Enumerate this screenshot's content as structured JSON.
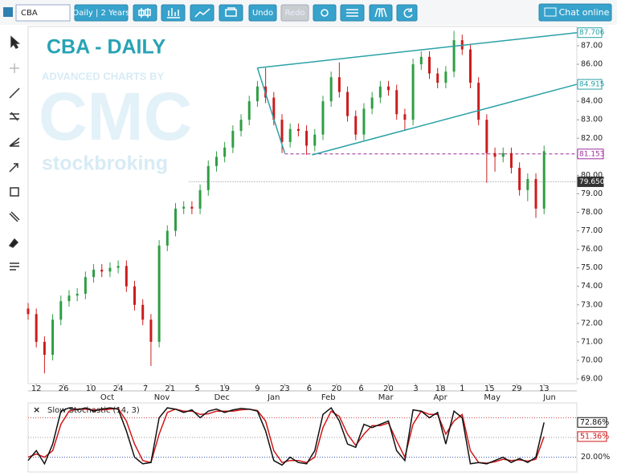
{
  "toolbar": {
    "symbol": "CBA",
    "period": "Daily | 2 Years",
    "undo": "Undo",
    "redo": "Redo",
    "chat": "Chat online"
  },
  "watermark": {
    "title": "CBA - DAILY",
    "byline": "ADVANCED CHARTS BY",
    "brand": "CMC",
    "tagline": "stockbroking"
  },
  "chart_data": [
    {
      "type": "candlestick",
      "x": [
        0,
        3,
        6,
        9,
        12,
        15,
        18,
        21,
        24,
        27,
        30,
        33,
        36,
        39,
        42,
        45,
        48,
        51,
        54,
        57,
        60,
        63,
        66,
        69,
        72,
        75,
        78,
        81,
        84,
        87,
        90,
        93,
        96,
        99,
        102,
        105,
        108,
        111,
        114,
        117,
        120,
        123,
        126,
        129,
        132,
        135,
        138,
        141,
        144,
        147,
        150,
        153,
        156,
        159,
        162,
        165,
        168,
        171,
        174,
        177,
        180,
        183,
        186,
        189
      ],
      "open": [
        72.8,
        72.5,
        71.0,
        70.3,
        72.2,
        73.2,
        73.5,
        73.6,
        74.5,
        74.9,
        74.8,
        75.0,
        75.1,
        74.0,
        73.0,
        72.2,
        71.0,
        76.2,
        77.0,
        78.2,
        78.3,
        78.2,
        79.2,
        80.5,
        81.0,
        81.5,
        82.4,
        83.0,
        84.0,
        84.8,
        84.2,
        83.0,
        81.8,
        82.5,
        82.4,
        81.6,
        82.2,
        84.0,
        85.3,
        84.5,
        83.2,
        82.2,
        83.6,
        84.2,
        84.8,
        84.6,
        83.3,
        83.0,
        86.0,
        86.4,
        85.5,
        85.0,
        85.6,
        87.3,
        86.8,
        85.0,
        83.0,
        81.2,
        81.0,
        81.2,
        80.4,
        79.2,
        79.8,
        78.2
      ],
      "high": [
        73.1,
        72.8,
        71.3,
        72.5,
        73.5,
        73.8,
        73.9,
        74.8,
        75.2,
        75.2,
        75.3,
        75.4,
        75.4,
        74.3,
        73.3,
        72.5,
        76.5,
        77.3,
        78.5,
        78.6,
        78.6,
        79.5,
        80.8,
        81.3,
        81.8,
        82.7,
        83.3,
        84.3,
        85.1,
        85.8,
        84.5,
        83.3,
        82.8,
        82.8,
        82.7,
        82.5,
        84.3,
        85.6,
        86.1,
        84.8,
        83.5,
        83.9,
        84.5,
        85.1,
        85.1,
        84.9,
        83.6,
        86.3,
        86.7,
        86.7,
        85.8,
        85.9,
        87.8,
        87.6,
        87.1,
        85.3,
        83.3,
        81.5,
        81.5,
        81.5,
        80.7,
        80.1,
        80.1,
        81.6
      ],
      "low": [
        72.2,
        70.7,
        69.3,
        70.0,
        71.9,
        72.9,
        73.2,
        73.3,
        74.2,
        74.5,
        74.5,
        74.7,
        73.7,
        72.7,
        71.9,
        69.7,
        70.7,
        75.9,
        76.7,
        77.9,
        77.9,
        77.9,
        78.9,
        80.2,
        80.7,
        81.2,
        82.1,
        82.7,
        83.7,
        83.9,
        82.7,
        81.2,
        81.5,
        82.1,
        81.1,
        81.3,
        81.9,
        83.7,
        84.2,
        82.9,
        81.9,
        81.9,
        83.3,
        83.9,
        84.3,
        83.0,
        82.4,
        82.7,
        85.7,
        85.2,
        84.7,
        84.7,
        85.3,
        86.5,
        84.7,
        82.7,
        79.6,
        80.2,
        80.7,
        80.1,
        78.9,
        78.6,
        77.7,
        77.9
      ],
      "close": [
        72.5,
        71.0,
        70.3,
        72.2,
        73.2,
        73.5,
        73.6,
        74.5,
        74.9,
        74.8,
        75.0,
        75.1,
        74.0,
        73.0,
        72.2,
        71.0,
        76.2,
        77.0,
        78.2,
        78.3,
        78.2,
        79.2,
        80.5,
        81.0,
        81.5,
        82.4,
        83.0,
        84.0,
        84.8,
        84.2,
        83.0,
        81.8,
        82.5,
        82.4,
        81.6,
        82.2,
        84.0,
        85.3,
        84.5,
        83.2,
        82.2,
        83.6,
        84.2,
        84.8,
        84.6,
        83.3,
        83.0,
        86.0,
        86.4,
        85.5,
        85.0,
        85.6,
        87.3,
        86.8,
        85.0,
        83.0,
        81.2,
        81.0,
        81.2,
        80.4,
        79.2,
        79.8,
        78.2,
        81.3
      ],
      "up_color": "#2f9e44",
      "down_color": "#cc1c1c",
      "xlim": [
        0,
        201
      ],
      "ylim": [
        68.74,
        88.04
      ],
      "yticks": [
        {
          "value": 69,
          "label": "69.00"
        },
        {
          "value": 70,
          "label": "70.00"
        },
        {
          "value": 71,
          "label": "71.00"
        },
        {
          "value": 72,
          "label": "72.00"
        },
        {
          "value": 73,
          "label": "73.00"
        },
        {
          "value": 74,
          "label": "74.00"
        },
        {
          "value": 75,
          "label": "75.00"
        },
        {
          "value": 76,
          "label": "76.00"
        },
        {
          "value": 77,
          "label": "77.00"
        },
        {
          "value": 78,
          "label": "78.00"
        },
        {
          "value": 79,
          "label": "79.00"
        },
        {
          "value": 80,
          "label": "80.00"
        },
        {
          "value": 81,
          "label": "81.00"
        },
        {
          "value": 82,
          "label": "82.00"
        },
        {
          "value": 83,
          "label": "83.00"
        },
        {
          "value": 84,
          "label": "84.00"
        },
        {
          "value": 85,
          "label": "85.00"
        },
        {
          "value": 86,
          "label": "86.00"
        },
        {
          "value": 87,
          "label": "87.00"
        }
      ],
      "xticks": [
        {
          "value": 3,
          "label": "12"
        },
        {
          "value": 13,
          "label": "26"
        },
        {
          "value": 23,
          "label": "10"
        },
        {
          "value": 33,
          "label": "24"
        },
        {
          "value": 43,
          "label": "7"
        },
        {
          "value": 52,
          "label": "21"
        },
        {
          "value": 62,
          "label": "5"
        },
        {
          "value": 72,
          "label": "19"
        },
        {
          "value": 84,
          "label": "9"
        },
        {
          "value": 94,
          "label": "23"
        },
        {
          "value": 103,
          "label": "6"
        },
        {
          "value": 113,
          "label": "20"
        },
        {
          "value": 122,
          "label": "6"
        },
        {
          "value": 132,
          "label": "20"
        },
        {
          "value": 142,
          "label": "3"
        },
        {
          "value": 151,
          "label": "18"
        },
        {
          "value": 159,
          "label": "1"
        },
        {
          "value": 169,
          "label": "15"
        },
        {
          "value": 179,
          "label": "29"
        },
        {
          "value": 189,
          "label": "13"
        }
      ],
      "month_ticks": [
        {
          "value": 29,
          "label": "Oct"
        },
        {
          "value": 49,
          "label": "Nov"
        },
        {
          "value": 71,
          "label": "Dec"
        },
        {
          "value": 90,
          "label": "Jan"
        },
        {
          "value": 110,
          "label": "Feb"
        },
        {
          "value": 131,
          "label": "Mar"
        },
        {
          "value": 151,
          "label": "Apr"
        },
        {
          "value": 170,
          "label": "May"
        },
        {
          "value": 191,
          "label": "Jun"
        }
      ],
      "trend_lines": [
        {
          "x": [
            84,
            201
          ],
          "y": [
            85.8,
            87.706
          ],
          "color": "#2aa1a6",
          "tag": true
        },
        {
          "x": [
            104,
            201
          ],
          "y": [
            81.1,
            84.915
          ],
          "color": "#2aa1a6",
          "tag": true
        },
        {
          "x": [
            84,
            94
          ],
          "y": [
            85.8,
            81.2
          ],
          "color": "#2aa1a6",
          "tag": false
        }
      ],
      "levels": [
        {
          "value": 81.153,
          "start": 94,
          "color": "#9b2c9b",
          "style": "dashed"
        },
        {
          "value": 79.65,
          "label": "79.650",
          "start": 59,
          "color": "#8a8a8a",
          "style": "dotted"
        }
      ]
    },
    {
      "type": "line",
      "title": "Slow Stochastic (14, 3)",
      "x": [
        0,
        3,
        6,
        9,
        12,
        15,
        18,
        21,
        24,
        27,
        30,
        33,
        36,
        39,
        42,
        45,
        48,
        51,
        54,
        57,
        60,
        63,
        66,
        69,
        72,
        75,
        78,
        81,
        84,
        87,
        90,
        93,
        96,
        99,
        102,
        105,
        108,
        111,
        114,
        117,
        120,
        123,
        126,
        129,
        132,
        135,
        138,
        141,
        144,
        147,
        150,
        153,
        156,
        159,
        162,
        165,
        168,
        171,
        174,
        177,
        180,
        183,
        186,
        189
      ],
      "xlim": [
        0,
        201
      ],
      "ylim": [
        0,
        100
      ],
      "series": [
        {
          "color": "#111111",
          "last_label": "72.86%",
          "values": [
            15,
            30,
            10,
            40,
            90,
            95,
            92,
            95,
            90,
            93,
            95,
            93,
            60,
            20,
            10,
            12,
            80,
            95,
            93,
            88,
            92,
            80,
            90,
            93,
            88,
            92,
            94,
            93,
            90,
            60,
            15,
            8,
            20,
            12,
            10,
            30,
            85,
            95,
            75,
            40,
            35,
            70,
            65,
            70,
            75,
            30,
            15,
            92,
            90,
            80,
            88,
            40,
            90,
            80,
            10,
            12,
            10,
            15,
            20,
            12,
            18,
            12,
            20,
            72.86
          ]
        },
        {
          "color": "#d01818",
          "last_label": "51.36%",
          "values": [
            20,
            25,
            20,
            30,
            70,
            90,
            93,
            93,
            92,
            92,
            93,
            94,
            75,
            40,
            15,
            12,
            55,
            88,
            93,
            90,
            90,
            85,
            86,
            90,
            90,
            90,
            92,
            93,
            91,
            75,
            30,
            12,
            15,
            15,
            12,
            20,
            65,
            90,
            82,
            55,
            38,
            55,
            68,
            68,
            72,
            45,
            20,
            70,
            90,
            85,
            85,
            55,
            75,
            85,
            30,
            12,
            11,
            13,
            17,
            15,
            16,
            14,
            17,
            51.36
          ]
        }
      ],
      "levels": [
        {
          "value": 80,
          "color": "#d04040"
        },
        {
          "value": 50,
          "color": "#999999"
        },
        {
          "value": 20,
          "label": "20.00%",
          "color": "#3050b0"
        }
      ]
    }
  ]
}
